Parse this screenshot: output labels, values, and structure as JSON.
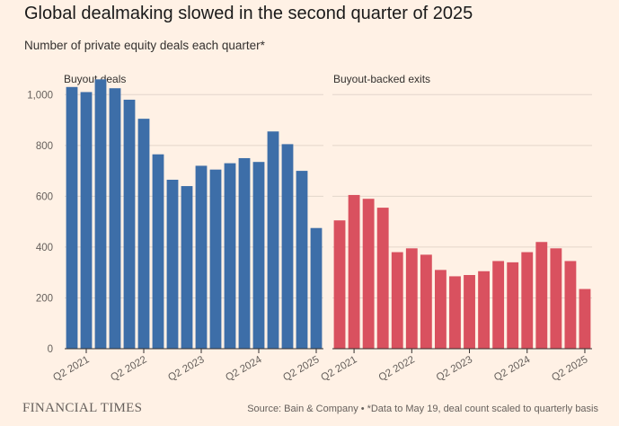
{
  "header": {
    "title": "Global dealmaking slowed in the second quarter of 2025",
    "subtitle": "Number of private equity deals each quarter*"
  },
  "footer": {
    "logo": "FINANCIAL TIMES",
    "source": "Source: Bain & Company",
    "note": "*Data to May 19, deal count scaled to quarterly basis",
    "separator": "•"
  },
  "colors": {
    "background": "#fff1e5",
    "buyout": "#3d6ea8",
    "exits": "#d9515f",
    "grid": "#e3d6cb",
    "axis": "#33302e"
  },
  "chart_data": [
    {
      "type": "bar",
      "title": "Buyout deals",
      "color": "#3d6ea8",
      "categories": [
        "Q1 2021",
        "Q2 2021",
        "Q3 2021",
        "Q4 2021",
        "Q1 2022",
        "Q2 2022",
        "Q3 2022",
        "Q4 2022",
        "Q1 2023",
        "Q2 2023",
        "Q3 2023",
        "Q4 2023",
        "Q1 2024",
        "Q2 2024",
        "Q3 2024",
        "Q4 2024",
        "Q1 2025",
        "Q2 2025"
      ],
      "values": [
        1030,
        1010,
        1060,
        1025,
        980,
        905,
        765,
        665,
        640,
        720,
        705,
        730,
        750,
        735,
        855,
        805,
        700,
        475
      ],
      "tick_labels": [
        "Q2 2021",
        "Q2 2022",
        "Q2 2023",
        "Q2 2024",
        "Q2 2025"
      ],
      "y_ticks": [
        "0",
        "200",
        "400",
        "600",
        "800",
        "1,000"
      ],
      "ylim": [
        0,
        1100
      ],
      "grid": true
    },
    {
      "type": "bar",
      "title": "Buyout-backed exits",
      "color": "#d9515f",
      "categories": [
        "Q1 2021",
        "Q2 2021",
        "Q3 2021",
        "Q4 2021",
        "Q1 2022",
        "Q2 2022",
        "Q3 2022",
        "Q4 2022",
        "Q1 2023",
        "Q2 2023",
        "Q3 2023",
        "Q4 2023",
        "Q1 2024",
        "Q2 2024",
        "Q3 2024",
        "Q4 2024",
        "Q1 2025",
        "Q2 2025"
      ],
      "values": [
        505,
        605,
        590,
        555,
        380,
        395,
        370,
        310,
        285,
        290,
        305,
        345,
        340,
        380,
        420,
        395,
        345,
        235
      ],
      "tick_labels": [
        "Q2 2021",
        "Q2 2022",
        "Q2 2023",
        "Q2 2024",
        "Q2 2025"
      ],
      "ylim": [
        0,
        1100
      ],
      "grid": true
    }
  ]
}
